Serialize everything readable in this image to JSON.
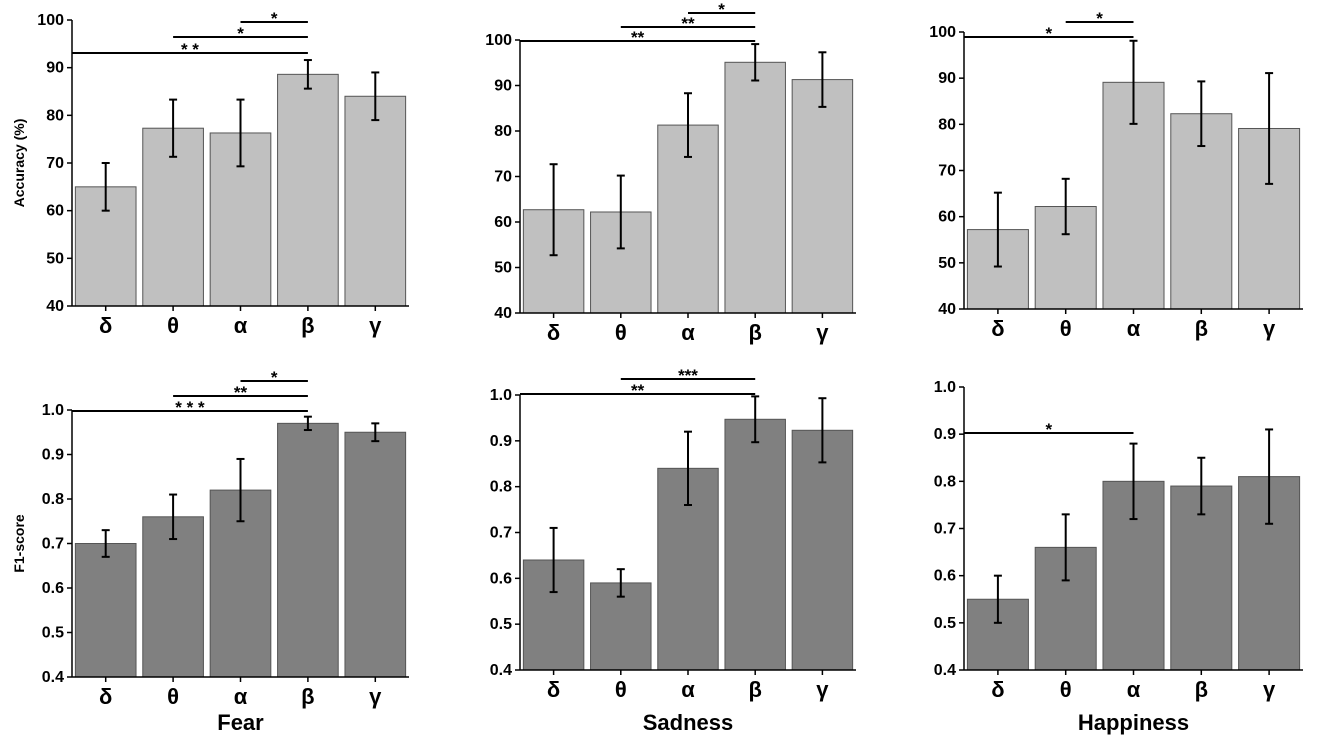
{
  "chart_data": [
    {
      "type": "bar",
      "panel": "accuracy-fear",
      "categories": [
        "δ",
        "θ",
        "α",
        "β",
        "γ"
      ],
      "values": [
        65,
        77.3,
        76.3,
        88.6,
        84
      ],
      "errors": [
        5,
        6,
        7,
        3,
        5
      ],
      "ylabel": "Accuracy (%)",
      "xlabel": "",
      "ylim": [
        40,
        100
      ],
      "yticks": [
        "40",
        "50",
        "60",
        "70",
        "80",
        "90",
        "100"
      ],
      "bar_color": "#c0c0c0",
      "significance": [
        {
          "from": 2,
          "to": 3,
          "label": "*"
        },
        {
          "from": 1,
          "to": 3,
          "label": "*"
        },
        {
          "from": 0,
          "to": 3,
          "label": "* *"
        }
      ]
    },
    {
      "type": "bar",
      "panel": "accuracy-sadness",
      "categories": [
        "δ",
        "θ",
        "α",
        "β",
        "γ"
      ],
      "values": [
        62.7,
        62.2,
        81.3,
        95.1,
        91.3
      ],
      "errors": [
        10,
        8,
        7,
        4,
        6
      ],
      "ylabel": "",
      "xlabel": "",
      "ylim": [
        40,
        100
      ],
      "yticks": [
        "40",
        "50",
        "60",
        "70",
        "80",
        "90",
        "100"
      ],
      "bar_color": "#c0c0c0",
      "significance": [
        {
          "from": 2,
          "to": 3,
          "label": "*"
        },
        {
          "from": 1,
          "to": 3,
          "label": "**"
        },
        {
          "from": 0,
          "to": 3,
          "label": "**"
        }
      ]
    },
    {
      "type": "bar",
      "panel": "accuracy-happiness",
      "categories": [
        "δ",
        "θ",
        "α",
        "β",
        "γ"
      ],
      "values": [
        57.2,
        62.2,
        89.1,
        82.3,
        79.1
      ],
      "errors": [
        8,
        6,
        9,
        7,
        12
      ],
      "ylabel": "",
      "xlabel": "",
      "ylim": [
        40,
        100
      ],
      "yticks": [
        "40",
        "50",
        "60",
        "70",
        "80",
        "90",
        "100"
      ],
      "bar_color": "#c0c0c0",
      "significance": [
        {
          "from": 1,
          "to": 2,
          "label": "*"
        },
        {
          "from": 0,
          "to": 2,
          "label": "*"
        }
      ]
    },
    {
      "type": "bar",
      "panel": "f1-fear",
      "categories": [
        "δ",
        "θ",
        "α",
        "β",
        "γ"
      ],
      "values": [
        0.7,
        0.76,
        0.82,
        0.97,
        0.95
      ],
      "errors": [
        0.03,
        0.05,
        0.07,
        0.015,
        0.02
      ],
      "ylabel": "F1-score",
      "xlabel": "Fear",
      "ylim": [
        0.4,
        1.0
      ],
      "yticks": [
        "0.4",
        "0.5",
        "0.6",
        "0.7",
        "0.8",
        "0.9",
        "1.0"
      ],
      "bar_color": "#808080",
      "significance": [
        {
          "from": 2,
          "to": 3,
          "label": "*"
        },
        {
          "from": 1,
          "to": 3,
          "label": "**"
        },
        {
          "from": 0,
          "to": 3,
          "label": "* * *"
        }
      ]
    },
    {
      "type": "bar",
      "panel": "f1-sadness",
      "categories": [
        "δ",
        "θ",
        "α",
        "β",
        "γ"
      ],
      "values": [
        0.64,
        0.59,
        0.84,
        0.947,
        0.923
      ],
      "errors": [
        0.07,
        0.03,
        0.08,
        0.05,
        0.07
      ],
      "ylabel": "",
      "xlabel": "Sadness",
      "ylim": [
        0.4,
        1.0
      ],
      "yticks": [
        "0.4",
        "0.5",
        "0.6",
        "0.7",
        "0.8",
        "0.9",
        "1.0"
      ],
      "bar_color": "#808080",
      "significance": [
        {
          "from": 1,
          "to": 3,
          "label": "***"
        },
        {
          "from": 0,
          "to": 3,
          "label": "**"
        }
      ]
    },
    {
      "type": "bar",
      "panel": "f1-happiness",
      "categories": [
        "δ",
        "θ",
        "α",
        "β",
        "γ"
      ],
      "values": [
        0.55,
        0.66,
        0.8,
        0.79,
        0.81
      ],
      "errors": [
        0.05,
        0.07,
        0.08,
        0.06,
        0.1
      ],
      "ylabel": "",
      "xlabel": "Happiness",
      "ylim": [
        0.4,
        1.0
      ],
      "yticks": [
        "0.4",
        "0.5",
        "0.6",
        "0.7",
        "0.8",
        "0.9",
        "1.0"
      ],
      "bar_color": "#808080",
      "significance": [
        {
          "from": 0,
          "to": 2,
          "label": "*"
        }
      ]
    }
  ]
}
